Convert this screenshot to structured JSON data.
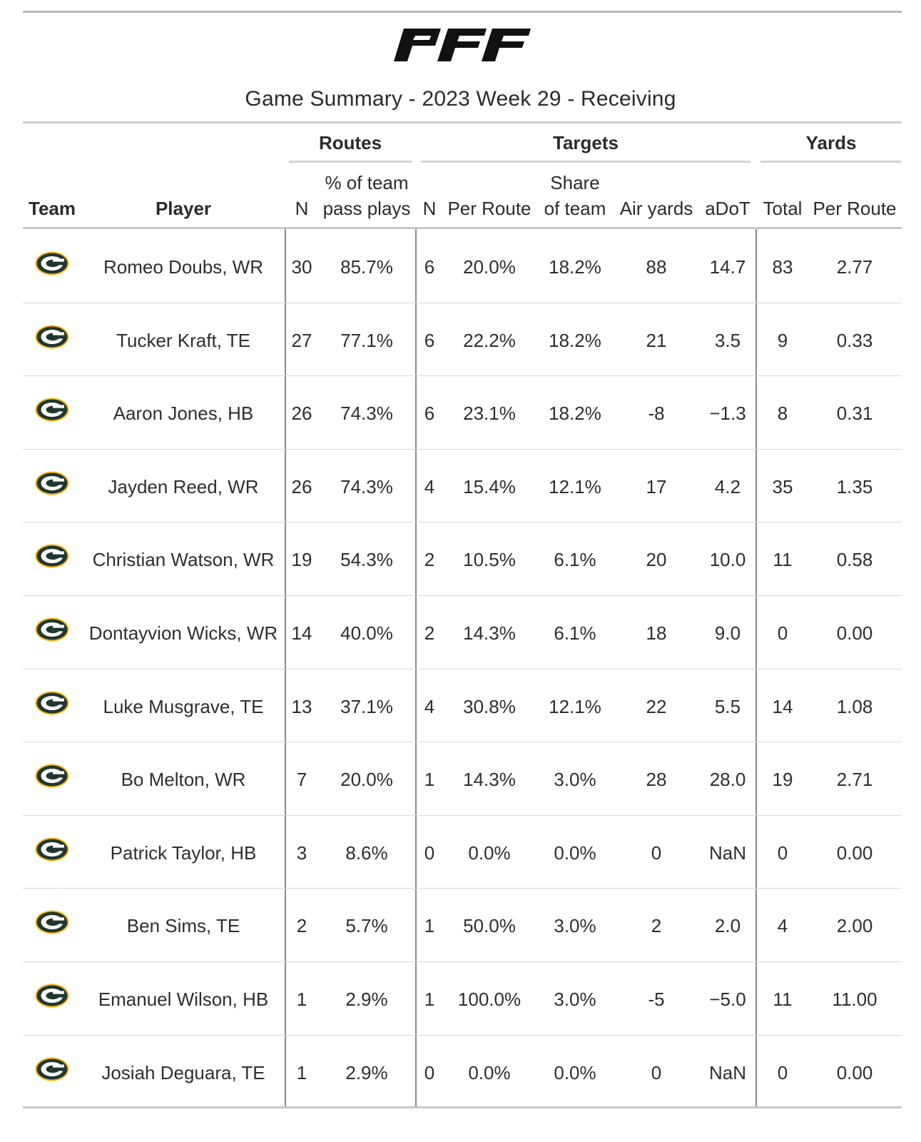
{
  "title": "Game Summary - 2023 Week 29 - Receiving",
  "logo_text": "PFF",
  "groups": {
    "routes": "Routes",
    "targets": "Targets",
    "yards": "Yards"
  },
  "headers": {
    "team": "Team",
    "player": "Player",
    "routes_n": "N",
    "pct_team_line1": "% of team",
    "pct_team_line2": "pass plays",
    "targets_n": "N",
    "targets_per_route": "Per Route",
    "share_line1": "Share",
    "share_line2": "of team",
    "air_yards": "Air yards",
    "adot": "aDoT",
    "yards_total": "Total",
    "yards_per_route": "Per Route"
  },
  "team_icon": "packers-g-logo-icon",
  "colors": {
    "packers_green": "#203731",
    "packers_gold": "#FFB612"
  },
  "rows": [
    {
      "player": "Romeo Doubs, WR",
      "routes_n": "30",
      "pct": "85.7%",
      "tgt_n": "6",
      "tgt_pr": "20.0%",
      "share": "18.2%",
      "air": "88",
      "adot": "14.7",
      "yds": "83",
      "ypr": "2.77"
    },
    {
      "player": "Tucker Kraft, TE",
      "routes_n": "27",
      "pct": "77.1%",
      "tgt_n": "6",
      "tgt_pr": "22.2%",
      "share": "18.2%",
      "air": "21",
      "adot": "3.5",
      "yds": "9",
      "ypr": "0.33"
    },
    {
      "player": "Aaron Jones, HB",
      "routes_n": "26",
      "pct": "74.3%",
      "tgt_n": "6",
      "tgt_pr": "23.1%",
      "share": "18.2%",
      "air": "-8",
      "adot": "−1.3",
      "yds": "8",
      "ypr": "0.31"
    },
    {
      "player": "Jayden Reed, WR",
      "routes_n": "26",
      "pct": "74.3%",
      "tgt_n": "4",
      "tgt_pr": "15.4%",
      "share": "12.1%",
      "air": "17",
      "adot": "4.2",
      "yds": "35",
      "ypr": "1.35"
    },
    {
      "player": "Christian Watson, WR",
      "routes_n": "19",
      "pct": "54.3%",
      "tgt_n": "2",
      "tgt_pr": "10.5%",
      "share": "6.1%",
      "air": "20",
      "adot": "10.0",
      "yds": "11",
      "ypr": "0.58"
    },
    {
      "player": "Dontayvion Wicks, WR",
      "routes_n": "14",
      "pct": "40.0%",
      "tgt_n": "2",
      "tgt_pr": "14.3%",
      "share": "6.1%",
      "air": "18",
      "adot": "9.0",
      "yds": "0",
      "ypr": "0.00"
    },
    {
      "player": "Luke Musgrave, TE",
      "routes_n": "13",
      "pct": "37.1%",
      "tgt_n": "4",
      "tgt_pr": "30.8%",
      "share": "12.1%",
      "air": "22",
      "adot": "5.5",
      "yds": "14",
      "ypr": "1.08"
    },
    {
      "player": "Bo Melton, WR",
      "routes_n": "7",
      "pct": "20.0%",
      "tgt_n": "1",
      "tgt_pr": "14.3%",
      "share": "3.0%",
      "air": "28",
      "adot": "28.0",
      "yds": "19",
      "ypr": "2.71"
    },
    {
      "player": "Patrick Taylor, HB",
      "routes_n": "3",
      "pct": "8.6%",
      "tgt_n": "0",
      "tgt_pr": "0.0%",
      "share": "0.0%",
      "air": "0",
      "adot": "NaN",
      "yds": "0",
      "ypr": "0.00"
    },
    {
      "player": "Ben Sims, TE",
      "routes_n": "2",
      "pct": "5.7%",
      "tgt_n": "1",
      "tgt_pr": "50.0%",
      "share": "3.0%",
      "air": "2",
      "adot": "2.0",
      "yds": "4",
      "ypr": "2.00"
    },
    {
      "player": "Emanuel Wilson, HB",
      "routes_n": "1",
      "pct": "2.9%",
      "tgt_n": "1",
      "tgt_pr": "100.0%",
      "share": "3.0%",
      "air": "-5",
      "adot": "−5.0",
      "yds": "11",
      "ypr": "11.00"
    },
    {
      "player": "Josiah Deguara, TE",
      "routes_n": "1",
      "pct": "2.9%",
      "tgt_n": "0",
      "tgt_pr": "0.0%",
      "share": "0.0%",
      "air": "0",
      "adot": "NaN",
      "yds": "0",
      "ypr": "0.00"
    }
  ]
}
